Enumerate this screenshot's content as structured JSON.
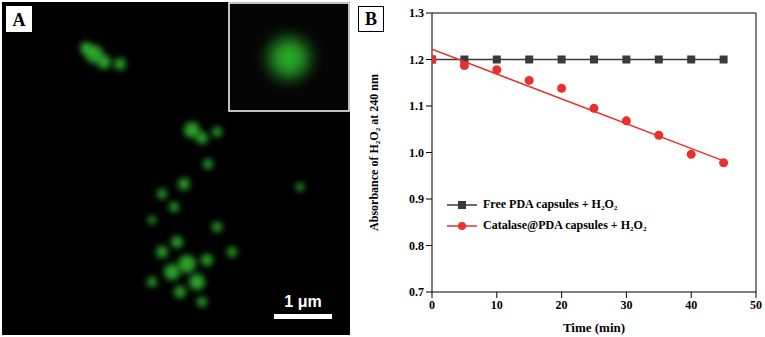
{
  "image": {
    "label": "A",
    "scale_bar": "1 μm"
  },
  "chart_data": {
    "type": "scatter",
    "annotations": [
      "B"
    ],
    "xlabel": "Time (min)",
    "ylabel": "Absorbance of H₂O₂ at 240 nm",
    "x": [
      0,
      5,
      10,
      15,
      20,
      25,
      30,
      35,
      40,
      45
    ],
    "series": [
      {
        "name": "Free PDA capsules + H₂O₂",
        "color": "#3a3a3a",
        "marker": "square",
        "line_style": "solid",
        "values": [
          1.2,
          1.2,
          1.2,
          1.2,
          1.2,
          1.2,
          1.2,
          1.2,
          1.2,
          1.2
        ]
      },
      {
        "name": "Catalase@PDA capsules + H₂O₂",
        "color": "#e8312f",
        "marker": "circle",
        "line_style": "none",
        "values": [
          1.2,
          1.187,
          1.178,
          1.155,
          1.138,
          1.095,
          1.068,
          1.037,
          0.996,
          0.978
        ],
        "fit": {
          "x": [
            0,
            45
          ],
          "values": [
            1.222,
            0.982
          ]
        }
      }
    ],
    "xlim": [
      0,
      50
    ],
    "xticks": [
      0,
      10,
      20,
      30,
      40,
      50
    ],
    "ylim": [
      0.7,
      1.3
    ],
    "yticks": [
      0.7,
      0.8,
      0.9,
      {
        "value": 1,
        "label": "1.0"
      },
      1.1,
      1.2,
      1.3
    ],
    "legend": "lower left",
    "grid": false
  }
}
